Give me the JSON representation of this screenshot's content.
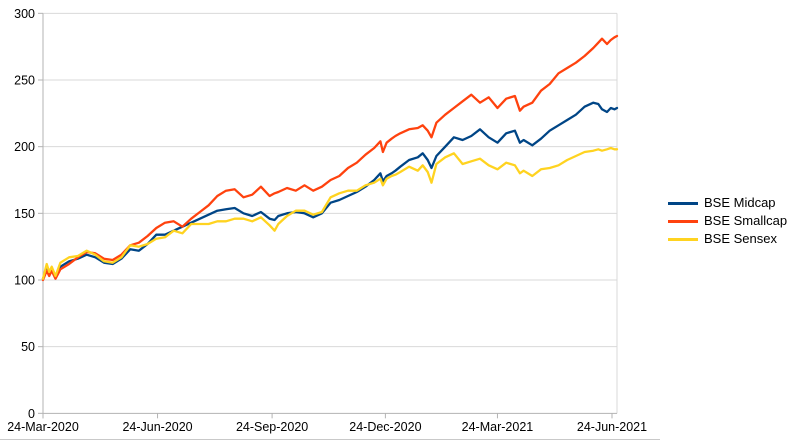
{
  "page": {
    "background": "#FFFFFF"
  },
  "chart_data": {
    "type": "line",
    "title": "",
    "xlabel": "",
    "ylabel": "",
    "x_unit": "days since 24-Mar-2020",
    "ylim": [
      0,
      300
    ],
    "xlim_days": [
      0,
      461
    ],
    "grid": true,
    "legend_position": "right",
    "y_ticks": [
      0,
      50,
      100,
      150,
      200,
      250,
      300
    ],
    "x_ticks": [
      {
        "label": "24-Mar-2020",
        "day": 0
      },
      {
        "label": "24-Jun-2020",
        "day": 92
      },
      {
        "label": "24-Sep-2020",
        "day": 184
      },
      {
        "label": "24-Dec-2020",
        "day": 275
      },
      {
        "label": "24-Mar-2021",
        "day": 365
      },
      {
        "label": "24-Jun-2021",
        "day": 457
      }
    ],
    "x": [
      0,
      3,
      5,
      7,
      10,
      14,
      21,
      28,
      35,
      42,
      49,
      56,
      63,
      70,
      77,
      84,
      91,
      98,
      105,
      112,
      119,
      126,
      133,
      140,
      147,
      154,
      161,
      168,
      175,
      182,
      186,
      189,
      196,
      203,
      210,
      217,
      224,
      231,
      238,
      245,
      252,
      259,
      266,
      271,
      273,
      276,
      280,
      283,
      287,
      294,
      301,
      305,
      309,
      312,
      316,
      323,
      330,
      337,
      344,
      351,
      358,
      365,
      372,
      379,
      383,
      386,
      393,
      400,
      407,
      414,
      421,
      428,
      435,
      442,
      446,
      449,
      453,
      456,
      459,
      461
    ],
    "series": [
      {
        "name": "BSE Midcap",
        "color": "#004586",
        "values": [
          101,
          109,
          105,
          108,
          102,
          110,
          114,
          116,
          119,
          117,
          113,
          112,
          116,
          123,
          122,
          127,
          134,
          134,
          137,
          140,
          143,
          146,
          149,
          152,
          153,
          154,
          150,
          148,
          151,
          146,
          145,
          148,
          150,
          151,
          150,
          147,
          150,
          158,
          160,
          163,
          166,
          170,
          175,
          180,
          174,
          178,
          180,
          182,
          185,
          190,
          192,
          195,
          190,
          184,
          193,
          200,
          207,
          205,
          208,
          213,
          207,
          203,
          210,
          212,
          203,
          205,
          201,
          206,
          212,
          216,
          220,
          224,
          230,
          233,
          232,
          228,
          226,
          229,
          228,
          229
        ]
      },
      {
        "name": "BSE Smallcap",
        "color": "#FF420E",
        "values": [
          100,
          107,
          103,
          107,
          101,
          108,
          112,
          117,
          121,
          120,
          116,
          115,
          119,
          126,
          128,
          133,
          139,
          143,
          144,
          140,
          146,
          151,
          156,
          163,
          167,
          168,
          162,
          164,
          170,
          163,
          165,
          166,
          169,
          167,
          171,
          167,
          170,
          175,
          178,
          184,
          188,
          194,
          199,
          204,
          196,
          203,
          206,
          208,
          210,
          213,
          214,
          216,
          212,
          207,
          218,
          224,
          229,
          234,
          239,
          233,
          237,
          229,
          236,
          238,
          227,
          230,
          233,
          242,
          247,
          255,
          259,
          263,
          268,
          274,
          278,
          281,
          277,
          280,
          282,
          283
        ]
      },
      {
        "name": "BSE Sensex",
        "color": "#FFD320",
        "values": [
          101,
          112,
          106,
          110,
          103,
          113,
          117,
          118,
          122,
          119,
          114,
          113,
          117,
          126,
          125,
          127,
          131,
          132,
          137,
          135,
          142,
          142,
          142,
          144,
          144,
          146,
          146,
          144,
          147,
          141,
          137,
          142,
          148,
          152,
          152,
          149,
          151,
          162,
          165,
          167,
          167,
          171,
          173,
          176,
          171,
          176,
          178,
          179,
          181,
          185,
          182,
          186,
          181,
          173,
          187,
          192,
          195,
          187,
          189,
          191,
          186,
          183,
          188,
          186,
          180,
          182,
          178,
          183,
          184,
          186,
          190,
          193,
          196,
          197,
          198,
          197,
          198,
          199,
          198,
          198
        ]
      }
    ],
    "colors": {
      "gridline": "#D9D9D9",
      "plot_frame": "#D9D9D9",
      "axis": "#B3B3B3",
      "text": "#000000",
      "bottom_edge": "#C9C9C9"
    }
  }
}
